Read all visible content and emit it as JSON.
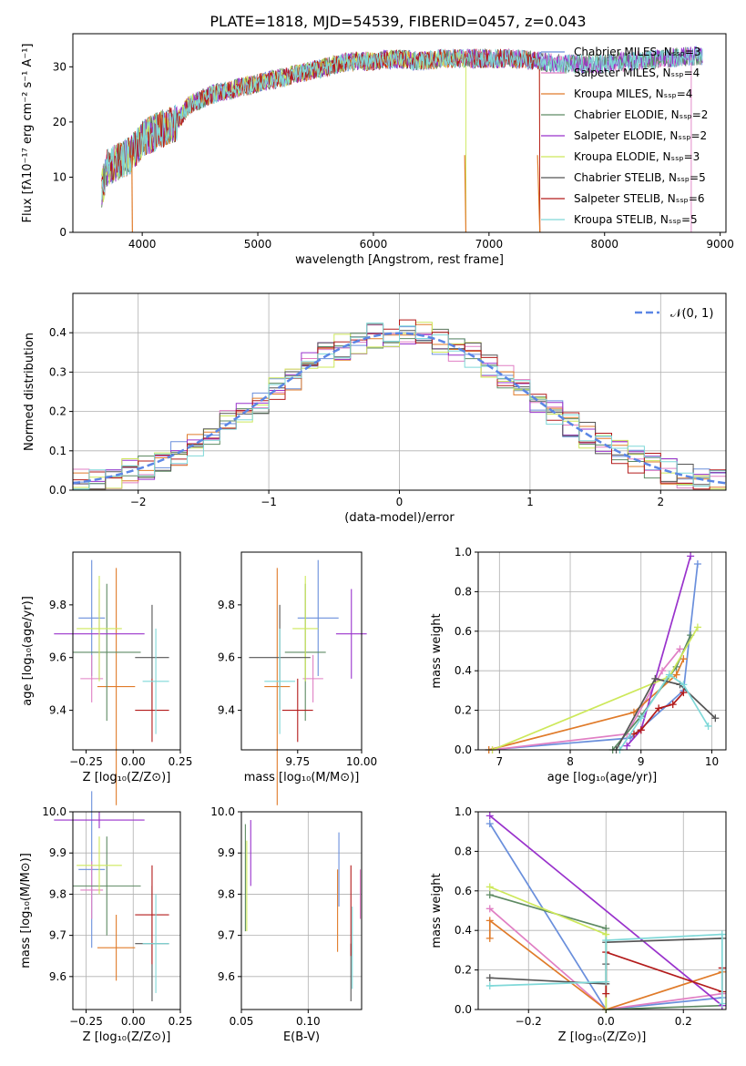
{
  "figure": {
    "title": "PLATE=1818, MJD=54539, FIBERID=0457, z=0.043"
  },
  "colors": [
    "#6a8fdc",
    "#e07fc4",
    "#e07b2a",
    "#5e8a63",
    "#9932cc",
    "#cde85a",
    "#555555",
    "#b31b1b",
    "#7fd8d8"
  ],
  "chart_data": [
    {
      "type": "line",
      "title": "PLATE=1818, MJD=54539, FIBERID=0457, z=0.043",
      "xlabel": "wavelength [Angstrom, rest frame]",
      "ylabel": "Flux [fλ10⁻¹⁷ erg cm⁻² s⁻¹ A⁻¹]",
      "xlim": [
        3400,
        9050
      ],
      "ylim": [
        0,
        36
      ],
      "xticks": [
        "4000",
        "5000",
        "6000",
        "7000",
        "8000",
        "9000"
      ],
      "yticks": [
        "0",
        "10",
        "20",
        "30"
      ],
      "legend": "top-right",
      "series": [
        {
          "name": "Chabrier MILES, Nₛₛₚ=3"
        },
        {
          "name": "Salpeter MILES, Nₛₛₚ=4"
        },
        {
          "name": "Kroupa MILES, Nₛₛₚ=4"
        },
        {
          "name": "Chabrier ELODIE, Nₛₛₚ=2"
        },
        {
          "name": "Salpeter ELODIE, Nₛₛₚ=2"
        },
        {
          "name": "Kroupa ELODIE, Nₛₛₚ=3"
        },
        {
          "name": "Chabrier STELIB, Nₛₛₚ=5"
        },
        {
          "name": "Salpeter STELIB, Nₛₛₚ=6"
        },
        {
          "name": "Kroupa STELIB, Nₛₛₚ=5"
        }
      ],
      "continuum": [
        [
          3650,
          8
        ],
        [
          3700,
          12
        ],
        [
          3800,
          13
        ],
        [
          3900,
          14
        ],
        [
          4000,
          17
        ],
        [
          4100,
          18
        ],
        [
          4200,
          19
        ],
        [
          4300,
          20
        ],
        [
          4400,
          23
        ],
        [
          4600,
          25
        ],
        [
          4800,
          26
        ],
        [
          5000,
          27
        ],
        [
          5200,
          28
        ],
        [
          5400,
          29
        ],
        [
          5600,
          30
        ],
        [
          5800,
          31
        ],
        [
          6000,
          31
        ],
        [
          6200,
          31.5
        ],
        [
          6400,
          31
        ],
        [
          6600,
          31.5
        ],
        [
          6800,
          31.5
        ],
        [
          7000,
          31.5
        ],
        [
          7200,
          31.5
        ],
        [
          7450,
          31
        ],
        [
          7600,
          30.5
        ],
        [
          7800,
          30.5
        ],
        [
          8000,
          30.5
        ],
        [
          8200,
          31
        ],
        [
          8500,
          31.5
        ],
        [
          8800,
          32
        ],
        [
          8850,
          32
        ]
      ],
      "ends": [
        8850,
        8750,
        7440,
        8850,
        8850,
        6800,
        8850,
        7440,
        8850
      ],
      "drops": [
        [
          3910,
          3915
        ],
        [
          7420,
          7440
        ],
        [
          6790,
          6800
        ]
      ]
    },
    {
      "type": "histogram",
      "xlabel": "(data-model)/error",
      "ylabel": "Normed distribution",
      "xlim": [
        -2.5,
        2.5
      ],
      "ylim": [
        0,
        0.5
      ],
      "xticks": [
        "−2",
        "−1",
        "0",
        "1",
        "2"
      ],
      "yticks": [
        "0.0",
        "0.1",
        "0.2",
        "0.3",
        "0.4"
      ],
      "legend": "top-right",
      "reference": {
        "name": "𝒩(0, 1)",
        "mean": 0,
        "sigma": 1
      },
      "bin_width": 0.125
    },
    {
      "type": "scatter",
      "xlabel": "Z [log₁₀(Z/Z⊙)]",
      "ylabel": "age  [log₁₀(age/yr)]",
      "xlim": [
        -0.32,
        0.25
      ],
      "ylim": [
        9.25,
        10.0
      ],
      "xticks": [
        "−0.25",
        "0.00",
        "0.25"
      ],
      "yticks": [
        "9.4",
        "9.6",
        "9.8"
      ],
      "points": [
        {
          "x": -0.22,
          "xe": 0.07,
          "y": 9.75,
          "ye": 0.22
        },
        {
          "x": -0.22,
          "xe": 0.06,
          "y": 9.52,
          "ye": 0.09
        },
        {
          "x": -0.09,
          "xe": 0.1,
          "y": 9.49,
          "ye": 0.45
        },
        {
          "x": -0.14,
          "xe": 0.18,
          "y": 9.62,
          "ye": 0.26
        },
        {
          "x": -0.18,
          "xe": 0.24,
          "y": 9.69,
          "ye": 0.17
        },
        {
          "x": -0.18,
          "xe": 0.12,
          "y": 9.71,
          "ye": 0.2
        },
        {
          "x": 0.1,
          "xe": 0.09,
          "y": 9.6,
          "ye": 0.2
        },
        {
          "x": 0.1,
          "xe": 0.09,
          "y": 9.4,
          "ye": 0.12
        },
        {
          "x": 0.12,
          "xe": 0.07,
          "y": 9.51,
          "ye": 0.2
        }
      ]
    },
    {
      "type": "scatter",
      "xlabel": "mass [log₁₀(M/M⊙)]",
      "ylabel": "",
      "xlim": [
        9.53,
        10.0
      ],
      "ylim": [
        9.25,
        10.0
      ],
      "xticks": [
        "9.75",
        "10.00"
      ],
      "yticks": [
        "9.4",
        "9.6",
        "9.8"
      ],
      "points": [
        {
          "x": 9.83,
          "xe": 0.08,
          "y": 9.75,
          "ye": 0.22
        },
        {
          "x": 9.81,
          "xe": 0.04,
          "y": 9.52,
          "ye": 0.09
        },
        {
          "x": 9.67,
          "xe": 0.05,
          "y": 9.49,
          "ye": 0.45
        },
        {
          "x": 9.78,
          "xe": 0.08,
          "y": 9.62,
          "ye": 0.26
        },
        {
          "x": 9.96,
          "xe": 0.06,
          "y": 9.69,
          "ye": 0.17
        },
        {
          "x": 9.78,
          "xe": 0.05,
          "y": 9.71,
          "ye": 0.2
        },
        {
          "x": 9.68,
          "xe": 0.12,
          "y": 9.6,
          "ye": 0.2
        },
        {
          "x": 9.75,
          "xe": 0.06,
          "y": 9.4,
          "ye": 0.12
        },
        {
          "x": 9.68,
          "xe": 0.06,
          "y": 9.51,
          "ye": 0.2
        }
      ]
    },
    {
      "type": "line",
      "xlabel": "age  [log₁₀(age/yr)]",
      "ylabel": "mass weight",
      "xlim": [
        6.7,
        10.2
      ],
      "ylim": [
        0,
        1.0
      ],
      "xticks": [
        "7",
        "8",
        "9",
        "10"
      ],
      "yticks": [
        "0.0",
        "0.2",
        "0.4",
        "0.6",
        "0.8",
        "1.0"
      ],
      "series": [
        {
          "x": [
            6.85,
            8.85,
            9.6,
            9.8
          ],
          "y": [
            0.0,
            0.06,
            0.3,
            0.94
          ]
        },
        {
          "x": [
            6.9,
            8.8,
            9.3,
            9.55
          ],
          "y": [
            0.0,
            0.08,
            0.4,
            0.51
          ]
        },
        {
          "x": [
            6.85,
            8.9,
            9.5,
            9.6
          ],
          "y": [
            0.0,
            0.19,
            0.38,
            0.46
          ]
        },
        {
          "x": [
            8.6,
            9.0,
            9.5,
            9.7
          ],
          "y": [
            0.0,
            0.17,
            0.42,
            0.58
          ]
        },
        {
          "x": [
            8.8,
            9.0,
            9.7
          ],
          "y": [
            0.02,
            0.1,
            0.98
          ]
        },
        {
          "x": [
            6.9,
            9.4,
            9.8
          ],
          "y": [
            0.0,
            0.37,
            0.62
          ]
        },
        {
          "x": [
            8.65,
            9.2,
            9.55,
            10.05
          ],
          "y": [
            0.0,
            0.36,
            0.33,
            0.16
          ]
        },
        {
          "x": [
            8.9,
            9.0,
            9.25,
            9.45,
            9.6
          ],
          "y": [
            0.08,
            0.1,
            0.21,
            0.23,
            0.29
          ]
        },
        {
          "x": [
            8.7,
            9.0,
            9.4,
            9.6,
            9.95
          ],
          "y": [
            0.0,
            0.16,
            0.38,
            0.33,
            0.12
          ]
        }
      ]
    },
    {
      "type": "scatter",
      "xlabel": "Z [log₁₀(Z/Z⊙)]",
      "ylabel": "mass [log₁₀(M/M⊙)]",
      "xlim": [
        -0.32,
        0.25
      ],
      "ylim": [
        9.52,
        10.0
      ],
      "xticks": [
        "−0.25",
        "0.00",
        "0.25"
      ],
      "yticks": [
        "9.6",
        "9.7",
        "9.8",
        "9.9",
        "10.0"
      ],
      "points": [
        {
          "x": -0.22,
          "xe": 0.07,
          "y": 9.86,
          "ye": 0.19
        },
        {
          "x": -0.22,
          "xe": 0.06,
          "y": 9.81,
          "ye": 0.07
        },
        {
          "x": -0.09,
          "xe": 0.1,
          "y": 9.67,
          "ye": 0.08
        },
        {
          "x": -0.14,
          "xe": 0.18,
          "y": 9.82,
          "ye": 0.12
        },
        {
          "x": -0.18,
          "xe": 0.24,
          "y": 9.98,
          "ye": 0.02
        },
        {
          "x": -0.18,
          "xe": 0.12,
          "y": 9.87,
          "ye": 0.07
        },
        {
          "x": 0.1,
          "xe": 0.09,
          "y": 9.68,
          "ye": 0.14
        },
        {
          "x": 0.1,
          "xe": 0.09,
          "y": 9.75,
          "ye": 0.12
        },
        {
          "x": 0.12,
          "xe": 0.07,
          "y": 9.68,
          "ye": 0.12
        }
      ]
    },
    {
      "type": "scatter",
      "xlabel": "E(B-V)",
      "ylabel": "",
      "xlim": [
        0.05,
        0.14
      ],
      "ylim": [
        9.52,
        10.0
      ],
      "xticks": [
        "0.05",
        "0.10"
      ],
      "yticks": [
        "9.6",
        "9.7",
        "9.8",
        "9.9",
        "10.0"
      ],
      "points": [
        {
          "x": 0.123,
          "y": 9.86,
          "ye": 0.09
        },
        {
          "x": 0.139,
          "y": 9.8,
          "ye": 0.06
        },
        {
          "x": 0.122,
          "y": 9.76,
          "ye": 0.1
        },
        {
          "x": 0.053,
          "y": 9.84,
          "ye": 0.13
        },
        {
          "x": 0.057,
          "y": 9.9,
          "ye": 0.08
        },
        {
          "x": 0.054,
          "y": 9.82,
          "ye": 0.11
        },
        {
          "x": 0.132,
          "y": 9.61,
          "ye": 0.07
        },
        {
          "x": 0.132,
          "y": 9.76,
          "ye": 0.11
        },
        {
          "x": 0.133,
          "y": 9.67,
          "ye": 0.1
        }
      ]
    },
    {
      "type": "line",
      "xlabel": "Z [log₁₀(Z/Z⊙)]",
      "ylabel": "mass weight",
      "xlim": [
        -0.33,
        0.31
      ],
      "ylim": [
        0,
        1.0
      ],
      "xticks": [
        "−0.2",
        "0.0",
        "0.2"
      ],
      "yticks": [
        "0.0",
        "0.2",
        "0.4",
        "0.6",
        "0.8",
        "1.0"
      ],
      "series": [
        {
          "x": [
            -0.3,
            0.0,
            0.3
          ],
          "y": [
            0.94,
            0.0,
            0.06
          ]
        },
        {
          "x": [
            -0.3,
            0.0,
            0.3
          ],
          "y": [
            0.51,
            0.0,
            0.08
          ]
        },
        {
          "x": [
            -0.3,
            -0.3,
            0.0,
            0.3
          ],
          "y": [
            0.36,
            0.45,
            0.0,
            0.19
          ]
        },
        {
          "x": [
            -0.3,
            0.0,
            0.0,
            0.3
          ],
          "y": [
            0.58,
            0.41,
            0.0,
            0.02
          ]
        },
        {
          "x": [
            -0.3,
            0.3
          ],
          "y": [
            0.98,
            0.02
          ]
        },
        {
          "x": [
            -0.3,
            0.0,
            0.0
          ],
          "y": [
            0.62,
            0.38,
            0.0
          ]
        },
        {
          "x": [
            -0.3,
            0.0,
            0.0,
            0.0,
            0.3
          ],
          "y": [
            0.16,
            0.13,
            0.23,
            0.34,
            0.36
          ]
        },
        {
          "x": [
            0.0,
            0.0,
            0.3,
            0.3
          ],
          "y": [
            0.08,
            0.29,
            0.09,
            0.21
          ]
        },
        {
          "x": [
            -0.3,
            0.0,
            0.0,
            0.3,
            0.3
          ],
          "y": [
            0.12,
            0.14,
            0.35,
            0.38,
            0.03
          ]
        }
      ]
    }
  ]
}
